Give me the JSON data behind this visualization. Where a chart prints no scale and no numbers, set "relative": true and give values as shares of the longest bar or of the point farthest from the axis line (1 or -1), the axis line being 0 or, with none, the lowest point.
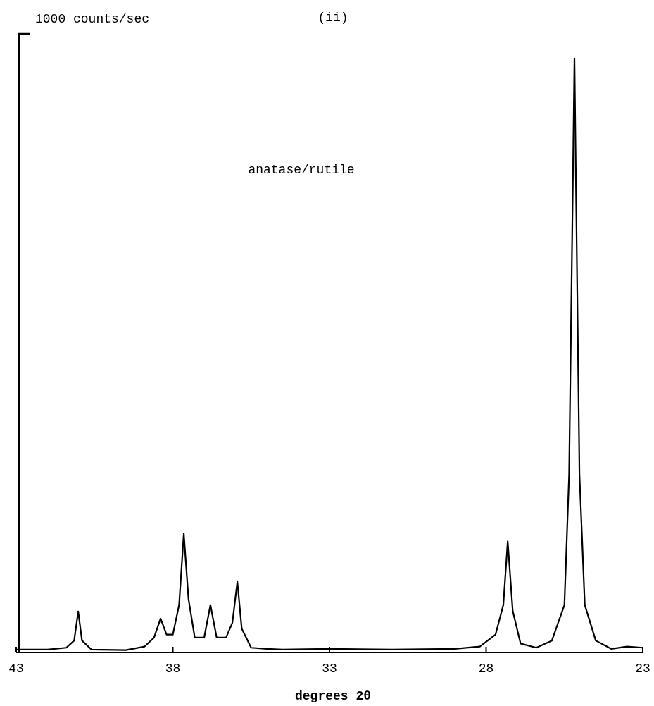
{
  "chart_data": {
    "type": "line",
    "title": "(ii)",
    "xlabel": "degrees 2θ",
    "ylabel": "1000 counts/sec",
    "annotations": [
      "anatase/rutile"
    ],
    "relative": true,
    "xlim": [
      43,
      23
    ],
    "xticks": [
      43,
      38,
      33,
      28,
      23
    ],
    "grid": false,
    "line_style": "solid",
    "series": [
      {
        "color": "#000000",
        "x": [
          43,
          42,
          41.4,
          41.15,
          41.02,
          40.9,
          40.6,
          39.5,
          38.9,
          38.6,
          38.39,
          38.2,
          38.0,
          37.8,
          37.65,
          37.5,
          37.3,
          37.0,
          36.8,
          36.6,
          36.3,
          36.1,
          35.94,
          35.8,
          35.5,
          35,
          34.5,
          33,
          31,
          29,
          28.2,
          27.7,
          27.45,
          27.31,
          27.15,
          26.9,
          26.4,
          25.9,
          25.5,
          25.35,
          25.18,
          25.02,
          24.85,
          24.5,
          24,
          23.5,
          23
        ],
        "values": [
          0.005,
          0.005,
          0.008,
          0.02,
          0.069,
          0.02,
          0.005,
          0.004,
          0.01,
          0.025,
          0.057,
          0.03,
          0.03,
          0.08,
          0.2,
          0.09,
          0.025,
          0.025,
          0.08,
          0.025,
          0.025,
          0.05,
          0.119,
          0.04,
          0.008,
          0.006,
          0.005,
          0.006,
          0.005,
          0.006,
          0.01,
          0.03,
          0.08,
          0.187,
          0.07,
          0.015,
          0.008,
          0.02,
          0.08,
          0.3,
          1.0,
          0.3,
          0.08,
          0.02,
          0.006,
          0.01,
          0.008
        ]
      }
    ]
  }
}
